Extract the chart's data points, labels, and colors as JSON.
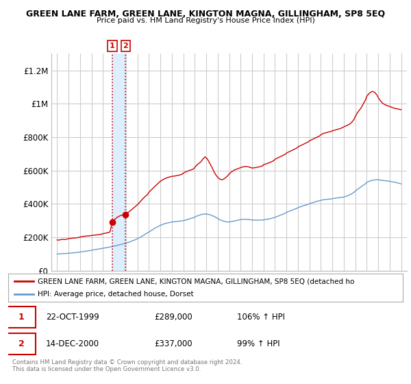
{
  "title": "GREEN LANE FARM, GREEN LANE, KINGTON MAGNA, GILLINGHAM, SP8 5EQ",
  "subtitle": "Price paid vs. HM Land Registry's House Price Index (HPI)",
  "legend_line1": "GREEN LANE FARM, GREEN LANE, KINGTON MAGNA, GILLINGHAM, SP8 5EQ (detached ho",
  "legend_line2": "HPI: Average price, detached house, Dorset",
  "footnote": "Contains HM Land Registry data © Crown copyright and database right 2024.\nThis data is licensed under the Open Government Licence v3.0.",
  "sale1_date": "22-OCT-1999",
  "sale1_price": "£289,000",
  "sale1_hpi": "106% ↑ HPI",
  "sale2_date": "14-DEC-2000",
  "sale2_price": "£337,000",
  "sale2_hpi": "99% ↑ HPI",
  "sale1_x": 1999.81,
  "sale1_y": 289000,
  "sale2_x": 2000.96,
  "sale2_y": 337000,
  "ylim": [
    0,
    1300000
  ],
  "xlim": [
    1994.5,
    2025.5
  ],
  "red_color": "#cc0000",
  "blue_color": "#6699cc",
  "shade_color": "#ddeeff",
  "background_color": "#ffffff",
  "grid_color": "#cccccc",
  "sale_marker_color": "#cc0000",
  "sale_box_color": "#cc0000",
  "red_anchors": [
    [
      1995.0,
      185000
    ],
    [
      1995.1,
      183000
    ],
    [
      1995.3,
      186000
    ],
    [
      1995.5,
      188000
    ],
    [
      1995.7,
      187000
    ],
    [
      1996.0,
      192000
    ],
    [
      1996.2,
      194000
    ],
    [
      1996.5,
      196000
    ],
    [
      1996.8,
      198000
    ],
    [
      1997.0,
      202000
    ],
    [
      1997.3,
      206000
    ],
    [
      1997.6,
      208000
    ],
    [
      1997.9,
      210000
    ],
    [
      1998.2,
      213000
    ],
    [
      1998.5,
      215000
    ],
    [
      1998.8,
      218000
    ],
    [
      1999.0,
      222000
    ],
    [
      1999.3,
      226000
    ],
    [
      1999.6,
      232000
    ],
    [
      1999.81,
      289000
    ],
    [
      1999.9,
      300000
    ],
    [
      2000.2,
      318000
    ],
    [
      2000.5,
      330000
    ],
    [
      2000.8,
      335000
    ],
    [
      2000.96,
      337000
    ],
    [
      2001.1,
      345000
    ],
    [
      2001.4,
      360000
    ],
    [
      2001.7,
      378000
    ],
    [
      2002.0,
      395000
    ],
    [
      2002.3,
      418000
    ],
    [
      2002.6,
      440000
    ],
    [
      2002.9,
      458000
    ],
    [
      2003.0,
      470000
    ],
    [
      2003.3,
      490000
    ],
    [
      2003.6,
      510000
    ],
    [
      2003.9,
      530000
    ],
    [
      2004.2,
      545000
    ],
    [
      2004.5,
      555000
    ],
    [
      2004.8,
      562000
    ],
    [
      2005.0,
      565000
    ],
    [
      2005.3,
      568000
    ],
    [
      2005.6,
      572000
    ],
    [
      2005.9,
      578000
    ],
    [
      2006.0,
      585000
    ],
    [
      2006.3,
      595000
    ],
    [
      2006.6,
      602000
    ],
    [
      2006.9,
      610000
    ],
    [
      2007.0,
      618000
    ],
    [
      2007.2,
      635000
    ],
    [
      2007.5,
      650000
    ],
    [
      2007.7,
      668000
    ],
    [
      2007.9,
      682000
    ],
    [
      2008.1,
      670000
    ],
    [
      2008.3,
      645000
    ],
    [
      2008.5,
      620000
    ],
    [
      2008.7,
      590000
    ],
    [
      2008.9,
      568000
    ],
    [
      2009.0,
      560000
    ],
    [
      2009.2,
      548000
    ],
    [
      2009.4,
      545000
    ],
    [
      2009.5,
      548000
    ],
    [
      2009.7,
      558000
    ],
    [
      2009.9,
      570000
    ],
    [
      2010.0,
      580000
    ],
    [
      2010.2,
      592000
    ],
    [
      2010.5,
      605000
    ],
    [
      2010.8,
      612000
    ],
    [
      2011.0,
      618000
    ],
    [
      2011.2,
      622000
    ],
    [
      2011.5,
      625000
    ],
    [
      2011.7,
      622000
    ],
    [
      2011.9,
      618000
    ],
    [
      2012.0,
      615000
    ],
    [
      2012.3,
      618000
    ],
    [
      2012.6,
      622000
    ],
    [
      2012.9,
      628000
    ],
    [
      2013.0,
      635000
    ],
    [
      2013.3,
      642000
    ],
    [
      2013.6,
      650000
    ],
    [
      2013.9,
      660000
    ],
    [
      2014.0,
      668000
    ],
    [
      2014.3,
      678000
    ],
    [
      2014.6,
      688000
    ],
    [
      2014.9,
      698000
    ],
    [
      2015.0,
      705000
    ],
    [
      2015.3,
      715000
    ],
    [
      2015.6,
      725000
    ],
    [
      2015.9,
      735000
    ],
    [
      2016.0,
      742000
    ],
    [
      2016.3,
      752000
    ],
    [
      2016.6,
      762000
    ],
    [
      2016.9,
      772000
    ],
    [
      2017.0,
      778000
    ],
    [
      2017.3,
      788000
    ],
    [
      2017.6,
      798000
    ],
    [
      2017.9,
      808000
    ],
    [
      2018.0,
      815000
    ],
    [
      2018.2,
      822000
    ],
    [
      2018.5,
      828000
    ],
    [
      2018.7,
      832000
    ],
    [
      2018.9,
      835000
    ],
    [
      2019.0,
      838000
    ],
    [
      2019.2,
      842000
    ],
    [
      2019.5,
      848000
    ],
    [
      2019.7,
      852000
    ],
    [
      2019.9,
      858000
    ],
    [
      2020.0,
      862000
    ],
    [
      2020.2,
      868000
    ],
    [
      2020.5,
      878000
    ],
    [
      2020.7,
      890000
    ],
    [
      2020.9,
      908000
    ],
    [
      2021.0,
      925000
    ],
    [
      2021.2,
      948000
    ],
    [
      2021.5,
      975000
    ],
    [
      2021.7,
      1000000
    ],
    [
      2021.9,
      1025000
    ],
    [
      2022.0,
      1045000
    ],
    [
      2022.2,
      1062000
    ],
    [
      2022.4,
      1072000
    ],
    [
      2022.5,
      1075000
    ],
    [
      2022.7,
      1068000
    ],
    [
      2022.9,
      1052000
    ],
    [
      2023.0,
      1038000
    ],
    [
      2023.2,
      1018000
    ],
    [
      2023.4,
      1002000
    ],
    [
      2023.6,
      995000
    ],
    [
      2023.8,
      988000
    ],
    [
      2024.0,
      985000
    ],
    [
      2024.2,
      978000
    ],
    [
      2024.5,
      972000
    ],
    [
      2024.8,
      968000
    ],
    [
      2025.0,
      965000
    ]
  ],
  "blue_anchors": [
    [
      1995.0,
      100000
    ],
    [
      1995.2,
      101000
    ],
    [
      1995.5,
      102500
    ],
    [
      1995.8,
      103500
    ],
    [
      1996.0,
      104500
    ],
    [
      1996.2,
      106000
    ],
    [
      1996.5,
      108000
    ],
    [
      1996.8,
      110000
    ],
    [
      1997.0,
      112000
    ],
    [
      1997.3,
      115000
    ],
    [
      1997.6,
      118000
    ],
    [
      1997.9,
      121000
    ],
    [
      1998.0,
      123000
    ],
    [
      1998.3,
      126000
    ],
    [
      1998.6,
      130000
    ],
    [
      1998.9,
      133000
    ],
    [
      1999.0,
      135000
    ],
    [
      1999.3,
      138000
    ],
    [
      1999.6,
      142000
    ],
    [
      1999.9,
      146000
    ],
    [
      2000.0,
      148000
    ],
    [
      2000.3,
      153000
    ],
    [
      2000.6,
      158000
    ],
    [
      2000.9,
      163000
    ],
    [
      2001.0,
      165000
    ],
    [
      2001.3,
      172000
    ],
    [
      2001.6,
      180000
    ],
    [
      2001.9,
      188000
    ],
    [
      2002.0,
      192000
    ],
    [
      2002.3,
      202000
    ],
    [
      2002.6,
      215000
    ],
    [
      2002.9,
      228000
    ],
    [
      2003.0,
      232000
    ],
    [
      2003.3,
      245000
    ],
    [
      2003.6,
      258000
    ],
    [
      2003.9,
      268000
    ],
    [
      2004.0,
      272000
    ],
    [
      2004.3,
      280000
    ],
    [
      2004.6,
      286000
    ],
    [
      2004.9,
      290000
    ],
    [
      2005.0,
      292000
    ],
    [
      2005.3,
      294000
    ],
    [
      2005.5,
      296000
    ],
    [
      2005.8,
      298000
    ],
    [
      2006.0,
      300000
    ],
    [
      2006.3,
      305000
    ],
    [
      2006.6,
      312000
    ],
    [
      2006.9,
      318000
    ],
    [
      2007.0,
      322000
    ],
    [
      2007.2,
      328000
    ],
    [
      2007.5,
      335000
    ],
    [
      2007.8,
      340000
    ],
    [
      2008.0,
      340000
    ],
    [
      2008.3,
      336000
    ],
    [
      2008.6,
      328000
    ],
    [
      2008.9,
      318000
    ],
    [
      2009.0,
      312000
    ],
    [
      2009.2,
      305000
    ],
    [
      2009.5,
      298000
    ],
    [
      2009.8,
      292000
    ],
    [
      2010.0,
      292000
    ],
    [
      2010.3,
      296000
    ],
    [
      2010.6,
      300000
    ],
    [
      2010.9,
      305000
    ],
    [
      2011.0,
      307000
    ],
    [
      2011.3,
      308000
    ],
    [
      2011.5,
      308000
    ],
    [
      2011.8,
      306000
    ],
    [
      2012.0,
      304000
    ],
    [
      2012.3,
      303000
    ],
    [
      2012.6,
      303000
    ],
    [
      2012.9,
      304000
    ],
    [
      2013.0,
      305000
    ],
    [
      2013.3,
      308000
    ],
    [
      2013.6,
      312000
    ],
    [
      2013.9,
      318000
    ],
    [
      2014.0,
      320000
    ],
    [
      2014.3,
      328000
    ],
    [
      2014.6,
      336000
    ],
    [
      2014.9,
      345000
    ],
    [
      2015.0,
      350000
    ],
    [
      2015.3,
      358000
    ],
    [
      2015.6,
      366000
    ],
    [
      2015.9,
      374000
    ],
    [
      2016.0,
      378000
    ],
    [
      2016.3,
      385000
    ],
    [
      2016.6,
      392000
    ],
    [
      2016.9,
      398000
    ],
    [
      2017.0,
      402000
    ],
    [
      2017.3,
      408000
    ],
    [
      2017.6,
      415000
    ],
    [
      2017.9,
      420000
    ],
    [
      2018.0,
      422000
    ],
    [
      2018.3,
      426000
    ],
    [
      2018.6,
      428000
    ],
    [
      2018.9,
      430000
    ],
    [
      2019.0,
      432000
    ],
    [
      2019.3,
      435000
    ],
    [
      2019.6,
      438000
    ],
    [
      2019.9,
      440000
    ],
    [
      2020.0,
      442000
    ],
    [
      2020.3,
      448000
    ],
    [
      2020.6,
      458000
    ],
    [
      2020.9,
      470000
    ],
    [
      2021.0,
      478000
    ],
    [
      2021.3,
      492000
    ],
    [
      2021.6,
      508000
    ],
    [
      2021.9,
      522000
    ],
    [
      2022.0,
      530000
    ],
    [
      2022.3,
      538000
    ],
    [
      2022.5,
      542000
    ],
    [
      2022.8,
      545000
    ],
    [
      2023.0,
      545000
    ],
    [
      2023.3,
      542000
    ],
    [
      2023.5,
      540000
    ],
    [
      2023.8,
      538000
    ],
    [
      2024.0,
      536000
    ],
    [
      2024.3,
      532000
    ],
    [
      2024.6,
      528000
    ],
    [
      2024.9,
      522000
    ],
    [
      2025.0,
      520000
    ]
  ]
}
